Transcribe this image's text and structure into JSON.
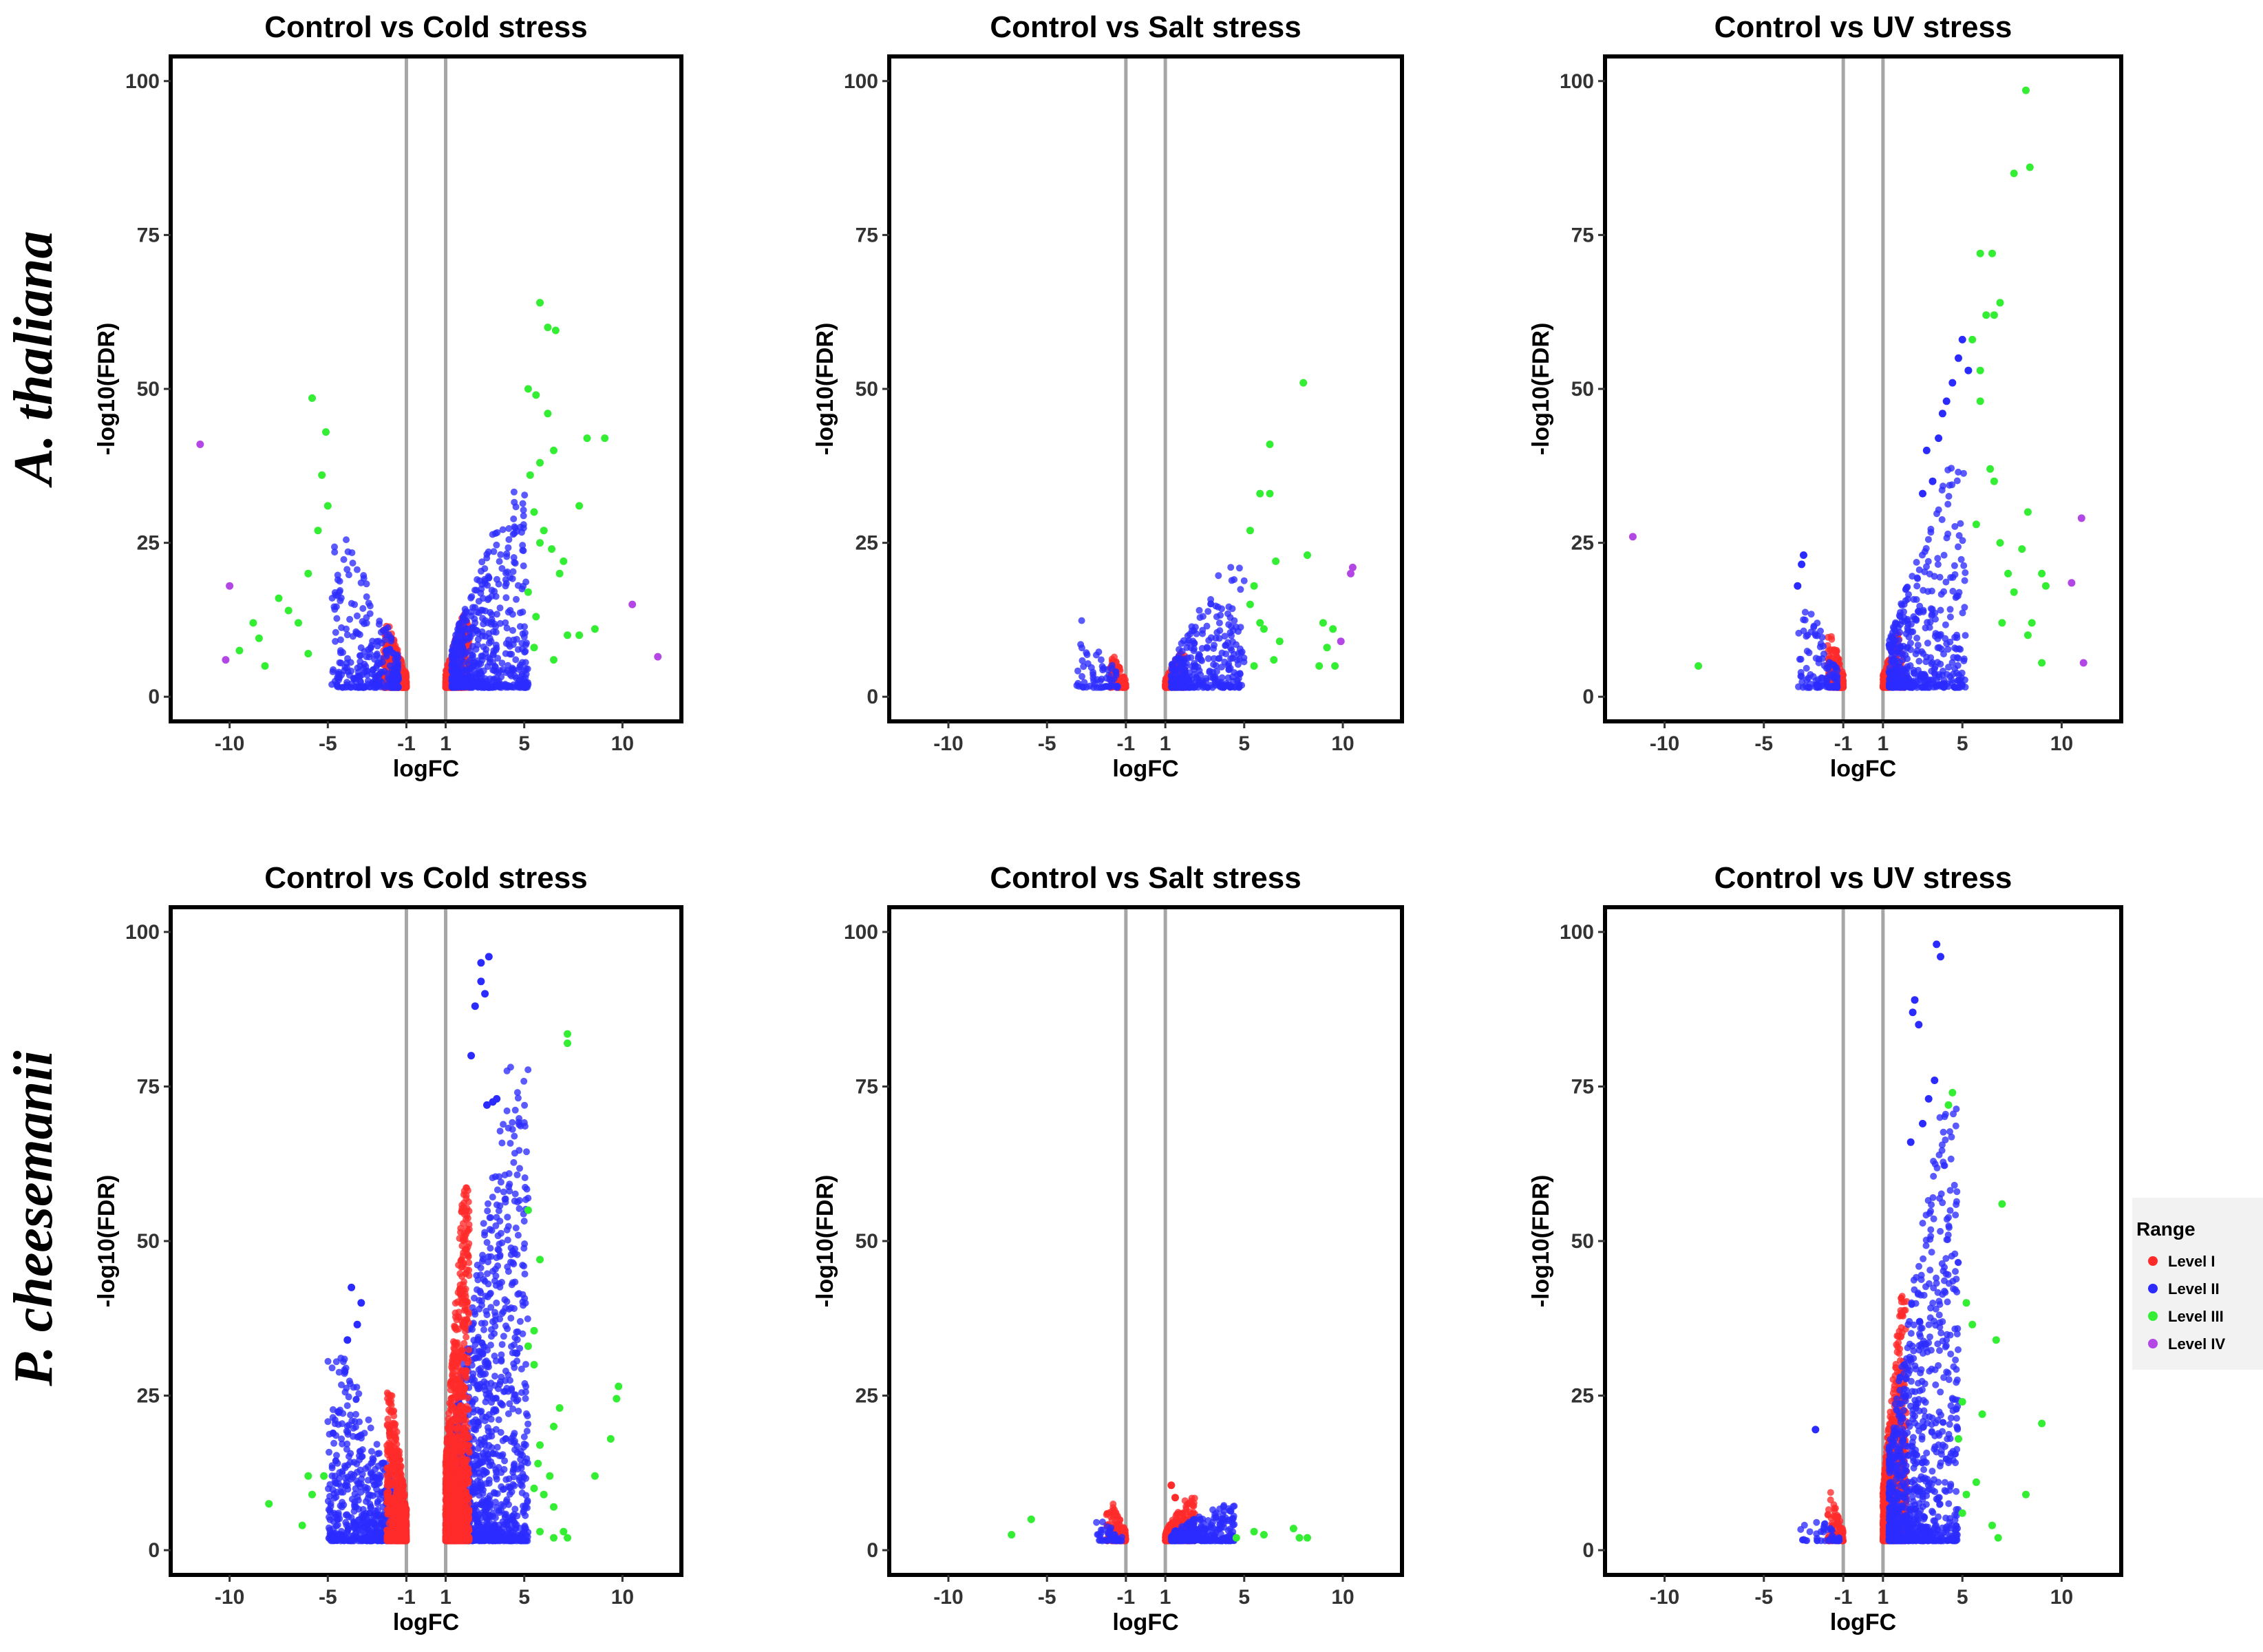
{
  "row_labels": [
    "A. thaliana",
    "P. cheesemanii"
  ],
  "legend": {
    "title": "Range",
    "items": [
      {
        "label": "Level I",
        "color": "#ff2a2a"
      },
      {
        "label": "Level II",
        "color": "#2b2bff"
      },
      {
        "label": "Level III",
        "color": "#33ee33"
      },
      {
        "label": "Level IV",
        "color": "#b347e6"
      }
    ]
  },
  "axes": {
    "xlabel": "logFC",
    "ylabel": "-log10(FDR)",
    "xticks": [
      -10,
      -5,
      -1,
      1,
      5,
      10
    ],
    "yticks": [
      0,
      25,
      50,
      75,
      100
    ],
    "xlim": [
      -13,
      13
    ],
    "ylim": [
      -4,
      104
    ],
    "threshold_lines": [
      -1,
      1
    ]
  },
  "chart_data": [
    {
      "type": "scatter",
      "row": "A. thaliana",
      "title": "Control vs Cold stress",
      "xlabel": "logFC",
      "ylabel": "-log10(FDR)",
      "clouds": [
        {
          "level": "Level I",
          "x": [
            -2.2,
            -1
          ],
          "ymax": 10,
          "n": 420
        },
        {
          "level": "Level II",
          "x": [
            -4.8,
            -1.4
          ],
          "ymax": 25,
          "n": 280
        },
        {
          "level": "Level I",
          "x": [
            1,
            2.2
          ],
          "ymax": 12,
          "n": 420
        },
        {
          "level": "Level II",
          "x": [
            1.3,
            5.2
          ],
          "ymax": 32,
          "n": 520
        }
      ],
      "points": {
        "Level III": [
          [
            -5.8,
            48.5
          ],
          [
            -5.1,
            43
          ],
          [
            -5.3,
            36
          ],
          [
            -5.0,
            31
          ],
          [
            -5.5,
            27
          ],
          [
            -6,
            20
          ],
          [
            -7,
            14
          ],
          [
            -6.5,
            12
          ],
          [
            -8.8,
            12
          ],
          [
            -8.5,
            9.5
          ],
          [
            -9.5,
            7.5
          ],
          [
            -8.2,
            5
          ],
          [
            -6,
            7
          ],
          [
            -7.5,
            16
          ],
          [
            5.8,
            64
          ],
          [
            6.2,
            60
          ],
          [
            6.6,
            59.5
          ],
          [
            5.2,
            50
          ],
          [
            5.6,
            49
          ],
          [
            6.2,
            46
          ],
          [
            6.5,
            40
          ],
          [
            5.8,
            38
          ],
          [
            5.3,
            36
          ],
          [
            5.5,
            30
          ],
          [
            6,
            27
          ],
          [
            5.8,
            25
          ],
          [
            6.4,
            24
          ],
          [
            6.8,
            20
          ],
          [
            5.2,
            17
          ],
          [
            5.6,
            13
          ],
          [
            7.2,
            10
          ],
          [
            8.2,
            42
          ],
          [
            9.1,
            42
          ],
          [
            7.8,
            31
          ],
          [
            8.6,
            11
          ],
          [
            7.8,
            10
          ],
          [
            6.5,
            6
          ],
          [
            5.5,
            8
          ],
          [
            7,
            22
          ]
        ],
        "Level IV": [
          [
            -11.5,
            41
          ],
          [
            -10,
            18
          ],
          [
            -10.2,
            6
          ],
          [
            10.5,
            15
          ],
          [
            11.8,
            6.5
          ]
        ]
      }
    },
    {
      "type": "scatter",
      "row": "A. thaliana",
      "title": "Control vs Salt stress",
      "xlabel": "logFC",
      "ylabel": "-log10(FDR)",
      "clouds": [
        {
          "level": "Level I",
          "x": [
            -1.8,
            -1
          ],
          "ymax": 5,
          "n": 120
        },
        {
          "level": "Level II",
          "x": [
            -3.5,
            -1.4
          ],
          "ymax": 11,
          "n": 60
        },
        {
          "level": "Level I",
          "x": [
            1,
            2
          ],
          "ymax": 6,
          "n": 220
        },
        {
          "level": "Level II",
          "x": [
            1.3,
            5
          ],
          "ymax": 20,
          "n": 320
        }
      ],
      "points": {
        "Level III": [
          [
            8.0,
            51
          ],
          [
            6.3,
            41
          ],
          [
            5.8,
            33
          ],
          [
            6.3,
            33
          ],
          [
            5.3,
            27
          ],
          [
            6.6,
            22
          ],
          [
            5.5,
            18
          ],
          [
            5.3,
            15
          ],
          [
            5.8,
            12
          ],
          [
            6.0,
            11
          ],
          [
            6.8,
            9
          ],
          [
            6.5,
            6
          ],
          [
            5.5,
            5
          ],
          [
            8.2,
            23
          ],
          [
            9.0,
            12
          ],
          [
            9.5,
            11
          ],
          [
            9.2,
            8
          ],
          [
            9.6,
            5
          ],
          [
            8.8,
            5
          ]
        ],
        "Level IV": [
          [
            10.5,
            21
          ],
          [
            10.4,
            20
          ],
          [
            9.9,
            9
          ]
        ]
      }
    },
    {
      "type": "scatter",
      "row": "A. thaliana",
      "title": "Control vs UV stress",
      "xlabel": "logFC",
      "ylabel": "-log10(FDR)",
      "clouds": [
        {
          "level": "Level I",
          "x": [
            -1.8,
            -1
          ],
          "ymax": 9,
          "n": 200
        },
        {
          "level": "Level II",
          "x": [
            -3.3,
            -1.3
          ],
          "ymax": 14,
          "n": 110
        },
        {
          "level": "Level I",
          "x": [
            1,
            2
          ],
          "ymax": 9,
          "n": 200
        },
        {
          "level": "Level II",
          "x": [
            1.3,
            5.2
          ],
          "ymax": 36,
          "n": 420
        }
      ],
      "points": {
        "Level II": [
          [
            -3.0,
            23
          ],
          [
            -3.1,
            21.5
          ],
          [
            -3.3,
            18
          ],
          [
            3.0,
            33
          ],
          [
            3.5,
            35
          ],
          [
            3.8,
            42
          ],
          [
            4.0,
            46
          ],
          [
            4.5,
            51
          ],
          [
            4.8,
            55
          ],
          [
            5.0,
            58
          ],
          [
            5.3,
            53
          ],
          [
            3.2,
            40
          ],
          [
            4.2,
            48
          ]
        ],
        "Level III": [
          [
            8.2,
            98.5
          ],
          [
            8.4,
            86
          ],
          [
            7.6,
            85
          ],
          [
            5.9,
            72
          ],
          [
            6.5,
            72
          ],
          [
            6.6,
            62
          ],
          [
            6.9,
            64
          ],
          [
            6.2,
            62
          ],
          [
            5.5,
            58
          ],
          [
            5.9,
            53
          ],
          [
            5.9,
            48
          ],
          [
            6.4,
            37
          ],
          [
            6.6,
            35
          ],
          [
            5.7,
            28
          ],
          [
            6.9,
            25
          ],
          [
            7.3,
            20
          ],
          [
            7.6,
            17
          ],
          [
            8.3,
            30
          ],
          [
            8.0,
            24
          ],
          [
            9.0,
            20
          ],
          [
            9.2,
            18
          ],
          [
            7.0,
            12
          ],
          [
            8.5,
            12
          ],
          [
            9.0,
            5.5
          ],
          [
            8.3,
            10
          ],
          [
            -8.3,
            5
          ]
        ],
        "Level IV": [
          [
            -11.6,
            26
          ],
          [
            11.0,
            29
          ],
          [
            10.5,
            18.5
          ],
          [
            11.1,
            5.5
          ]
        ]
      }
    },
    {
      "type": "scatter",
      "row": "P. cheesemanii",
      "title": "Control vs Cold stress",
      "xlabel": "logFC",
      "ylabel": "-log10(FDR)",
      "clouds": [
        {
          "level": "Level II",
          "x": [
            -5,
            -1.4
          ],
          "ymax": 30,
          "n": 650
        },
        {
          "level": "Level I",
          "x": [
            -2,
            -1
          ],
          "ymax": 24,
          "n": 650
        },
        {
          "level": "Level II",
          "x": [
            1.3,
            5.2
          ],
          "ymax": 78,
          "n": 1300
        },
        {
          "level": "Level I",
          "x": [
            1,
            2.2
          ],
          "ymax": 58,
          "n": 1300
        }
      ],
      "points": {
        "Level II": [
          [
            -3.8,
            42.5
          ],
          [
            -3.3,
            40
          ],
          [
            -3.5,
            36.5
          ],
          [
            -4,
            34
          ],
          [
            3.2,
            96
          ],
          [
            2.8,
            95
          ],
          [
            2.8,
            92
          ],
          [
            3,
            90
          ],
          [
            2.5,
            88
          ],
          [
            3.4,
            72.5
          ],
          [
            3.1,
            72
          ],
          [
            3.6,
            73
          ],
          [
            2.3,
            80
          ]
        ],
        "Level III": [
          [
            7.2,
            83.5
          ],
          [
            7.2,
            82
          ],
          [
            5.8,
            47
          ],
          [
            5.5,
            35.5
          ],
          [
            5.2,
            33
          ],
          [
            5.5,
            30
          ],
          [
            6.8,
            23
          ],
          [
            6.5,
            20
          ],
          [
            5.8,
            17
          ],
          [
            5.7,
            14
          ],
          [
            6.3,
            12
          ],
          [
            5.5,
            10
          ],
          [
            6.0,
            9
          ],
          [
            6.5,
            7
          ],
          [
            7.0,
            3
          ],
          [
            7.2,
            2
          ],
          [
            5.8,
            3
          ],
          [
            6.5,
            2
          ],
          [
            9.8,
            26.5
          ],
          [
            9.7,
            24.5
          ],
          [
            9.4,
            18
          ],
          [
            8.6,
            12
          ],
          [
            -8.0,
            7.5
          ],
          [
            -6.0,
            12
          ],
          [
            -5.8,
            9
          ],
          [
            -5.2,
            12
          ],
          [
            -6.3,
            4
          ],
          [
            5.2,
            55
          ]
        ]
      }
    },
    {
      "type": "scatter",
      "row": "P. cheesemanii",
      "title": "Control vs Salt stress",
      "xlabel": "logFC",
      "ylabel": "-log10(FDR)",
      "clouds": [
        {
          "level": "Level I",
          "x": [
            -2,
            -1
          ],
          "ymax": 7,
          "n": 160
        },
        {
          "level": "Level II",
          "x": [
            -2.5,
            -1.2
          ],
          "ymax": 3.5,
          "n": 40
        },
        {
          "level": "Level I",
          "x": [
            1,
            2.5
          ],
          "ymax": 7,
          "n": 300
        },
        {
          "level": "Level II",
          "x": [
            1.3,
            4.5
          ],
          "ymax": 6,
          "n": 320
        }
      ],
      "points": {
        "Level I": [
          [
            1.3,
            10.5
          ],
          [
            1.5,
            8.5
          ]
        ],
        "Level III": [
          [
            -5.8,
            5
          ],
          [
            -6.8,
            2.5
          ],
          [
            4.6,
            2
          ],
          [
            5.5,
            3
          ],
          [
            6,
            2.5
          ],
          [
            7.5,
            3.5
          ],
          [
            7.8,
            2
          ],
          [
            8.2,
            2
          ]
        ]
      }
    },
    {
      "type": "scatter",
      "row": "P. cheesemanii",
      "title": "Control vs UV stress",
      "xlabel": "logFC",
      "ylabel": "-log10(FDR)",
      "clouds": [
        {
          "level": "Level I",
          "x": [
            -1.8,
            -1
          ],
          "ymax": 8,
          "n": 120
        },
        {
          "level": "Level II",
          "x": [
            -3.2,
            -1.2
          ],
          "ymax": 5,
          "n": 40
        },
        {
          "level": "Level I",
          "x": [
            1,
            2.2
          ],
          "ymax": 40,
          "n": 900
        },
        {
          "level": "Level II",
          "x": [
            1.3,
            4.8
          ],
          "ymax": 70,
          "n": 900
        }
      ],
      "points": {
        "Level II": [
          [
            3.7,
            98
          ],
          [
            3.9,
            96
          ],
          [
            2.6,
            89
          ],
          [
            2.5,
            87
          ],
          [
            2.8,
            85
          ],
          [
            3.6,
            76
          ],
          [
            3.3,
            73
          ],
          [
            3.0,
            69
          ],
          [
            2.4,
            66
          ],
          [
            -2.4,
            19.5
          ]
        ],
        "Level III": [
          [
            4.5,
            74
          ],
          [
            4.3,
            72
          ],
          [
            7.0,
            56
          ],
          [
            5.2,
            40
          ],
          [
            5.5,
            36.5
          ],
          [
            6.7,
            34
          ],
          [
            5.0,
            24
          ],
          [
            6.0,
            22
          ],
          [
            4.8,
            18
          ],
          [
            5.7,
            11
          ],
          [
            5.2,
            9
          ],
          [
            5.0,
            6
          ],
          [
            6.5,
            4
          ],
          [
            6.8,
            2
          ],
          [
            8.2,
            9
          ],
          [
            9.0,
            20.5
          ]
        ]
      }
    }
  ]
}
